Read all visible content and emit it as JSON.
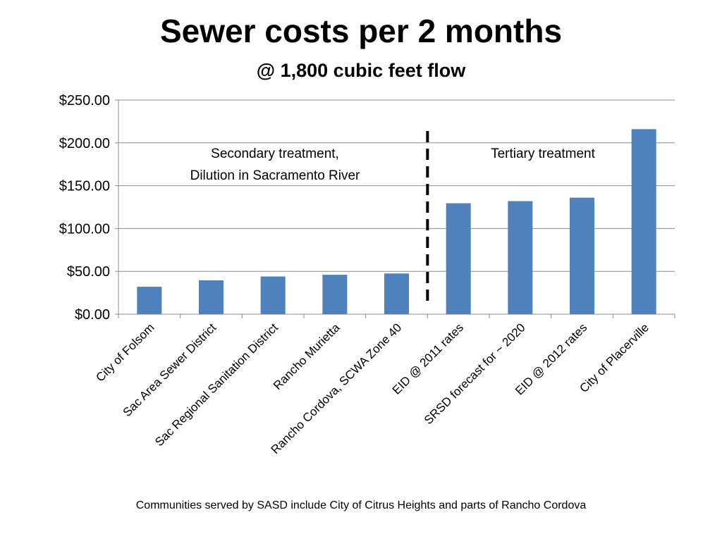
{
  "title": "Sewer costs per 2 months",
  "subtitle": "@ 1,800 cubic feet flow",
  "footnote": "Communities served by SASD include City of Citrus Heights and parts of Rancho Cordova",
  "chart_data": {
    "type": "bar",
    "categories": [
      "City of Folsom",
      "Sac Area Sewer District",
      "Sac Regional Sanitation District",
      "Rancho Murietta",
      "Rancho Cordova, SCWA Zone 40",
      "EID @ 2011 rates",
      "SRSD forecast for ~ 2020",
      "EID @ 2012 rates",
      "City of Placerville"
    ],
    "values": [
      32,
      39.5,
      44,
      46,
      47.5,
      129.5,
      132,
      136,
      216
    ],
    "ylim": [
      0,
      250
    ],
    "yticks": [
      0,
      50,
      100,
      150,
      200,
      250
    ],
    "ytick_labels": [
      "$0.00",
      "$50.00",
      "$100.00",
      "$150.00",
      "$200.00",
      "$250.00"
    ],
    "grid": true,
    "bar_color": "#4f81bd",
    "divider_after_index": 4,
    "annotations": {
      "left_line1": "Secondary treatment,",
      "left_line2": "Dilution in Sacramento River",
      "right": "Tertiary treatment"
    }
  }
}
